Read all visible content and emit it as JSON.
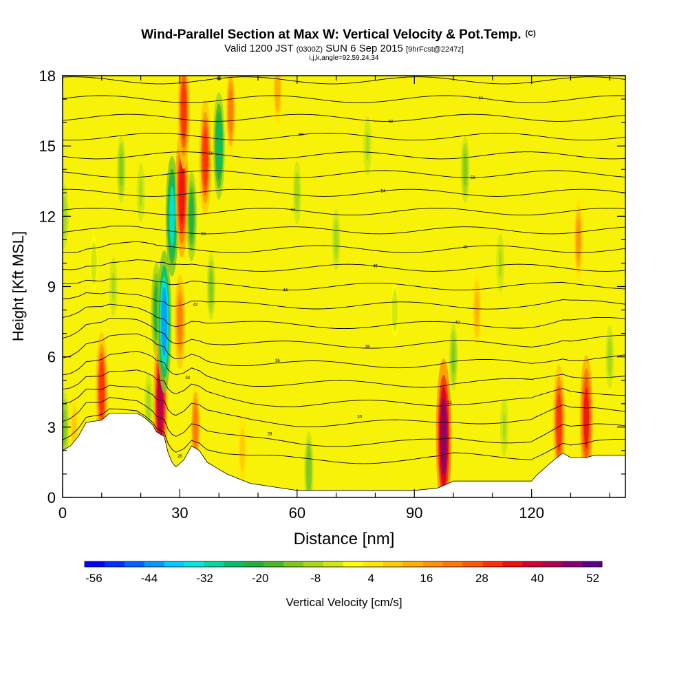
{
  "chart_data": {
    "type": "heatmap",
    "title": "Wind-Parallel Section at Max W: Vertical Velocity & Pot.Temp.",
    "title_tag": "(C)",
    "subtitle_parts": [
      "Valid 1200 JST",
      "(0300Z)",
      "SUN 6 Sep 2015",
      "[9hrFcst@2247z]"
    ],
    "subtitle2": "i,j,k,angle=92,59,24,34",
    "xlabel": "Distance [nm]",
    "ylabel": "Height [Kft MSL]",
    "xlim": [
      0,
      144
    ],
    "ylim": [
      0,
      18
    ],
    "x_ticks": [
      0,
      30,
      60,
      90,
      120
    ],
    "y_ticks": [
      0,
      3,
      6,
      9,
      12,
      15,
      18
    ],
    "colorbar": {
      "label": "Vertical Velocity [cm/s]",
      "min": -58,
      "max": 54,
      "tick_values": [
        -56,
        -44,
        -32,
        -20,
        -8,
        4,
        16,
        28,
        40,
        52
      ],
      "tick_labels": [
        "-56",
        "-44",
        "-32",
        "-20",
        "-8",
        "4",
        "16",
        "28",
        "40",
        "52"
      ],
      "colors": [
        "#0000ff",
        "#0030ff",
        "#0066ff",
        "#0099ff",
        "#00ccff",
        "#00e8e0",
        "#00d8a0",
        "#00c070",
        "#22b040",
        "#4cb828",
        "#80c820",
        "#a8d818",
        "#d0e810",
        "#ffff00",
        "#ffe800",
        "#ffcc00",
        "#ffb000",
        "#ff9400",
        "#ff7800",
        "#ff5800",
        "#ff3000",
        "#f01010",
        "#d00030",
        "#b00050",
        "#880070",
        "#5c0088"
      ]
    },
    "velocity_cells": [
      {
        "x": 0.5,
        "z": 3,
        "w": -14
      },
      {
        "x": 0.5,
        "z": 12,
        "w": -10
      },
      {
        "x": 3,
        "z": 3,
        "w": 10
      },
      {
        "x": 8,
        "z": 10,
        "w": -6
      },
      {
        "x": 10,
        "z": 4.6,
        "w": 34
      },
      {
        "x": 13,
        "z": 9,
        "w": -8
      },
      {
        "x": 15,
        "z": 14,
        "w": -12
      },
      {
        "x": 20,
        "z": 13,
        "w": -8
      },
      {
        "x": 22,
        "z": 4,
        "w": -10
      },
      {
        "x": 24,
        "z": 8,
        "w": -24
      },
      {
        "x": 25,
        "z": 4,
        "w": 46
      },
      {
        "x": 26,
        "z": 7.5,
        "w": -46
      },
      {
        "x": 28,
        "z": 12,
        "w": -36
      },
      {
        "x": 30,
        "z": 7.5,
        "w": 24
      },
      {
        "x": 30.5,
        "z": 13,
        "w": 40
      },
      {
        "x": 31,
        "z": 16.5,
        "w": 34
      },
      {
        "x": 33,
        "z": 12,
        "w": -22
      },
      {
        "x": 34,
        "z": 3,
        "w": 22
      },
      {
        "x": 36.5,
        "z": 14.5,
        "w": 34
      },
      {
        "x": 38,
        "z": 9,
        "w": -12
      },
      {
        "x": 40,
        "z": 15,
        "w": -30
      },
      {
        "x": 43,
        "z": 16.5,
        "w": 22
      },
      {
        "x": 46,
        "z": 2,
        "w": 12
      },
      {
        "x": 55,
        "z": 17.5,
        "w": 16
      },
      {
        "x": 60,
        "z": 13,
        "w": -10
      },
      {
        "x": 63,
        "z": 1.2,
        "w": -16
      },
      {
        "x": 70,
        "z": 11,
        "w": -9
      },
      {
        "x": 78,
        "z": 15,
        "w": -8
      },
      {
        "x": 85,
        "z": 8,
        "w": -6
      },
      {
        "x": 97.5,
        "z": 2.6,
        "w": 52
      },
      {
        "x": 100,
        "z": 6,
        "w": -12
      },
      {
        "x": 103,
        "z": 14,
        "w": -12
      },
      {
        "x": 106,
        "z": 8,
        "w": 14
      },
      {
        "x": 112,
        "z": 10,
        "w": -8
      },
      {
        "x": 113,
        "z": 3,
        "w": -8
      },
      {
        "x": 127,
        "z": 3.2,
        "w": 34
      },
      {
        "x": 134,
        "z": 3.4,
        "w": 38
      },
      {
        "x": 132,
        "z": 11,
        "w": 20
      },
      {
        "x": 140,
        "z": 6,
        "w": -10
      }
    ],
    "terrain_top": [
      [
        0,
        2
      ],
      [
        2,
        2.2
      ],
      [
        4,
        2.6
      ],
      [
        6,
        3.2
      ],
      [
        10,
        3.3
      ],
      [
        12,
        3.6
      ],
      [
        19,
        3.6
      ],
      [
        21,
        3.4
      ],
      [
        23,
        3.1
      ],
      [
        24,
        2.8
      ],
      [
        26,
        2.6
      ],
      [
        27,
        1.9
      ],
      [
        28,
        1.5
      ],
      [
        29,
        1.3
      ],
      [
        31,
        1.6
      ],
      [
        33,
        2.2
      ],
      [
        35,
        2.0
      ],
      [
        37,
        1.5
      ],
      [
        39,
        1.3
      ],
      [
        42,
        1.0
      ],
      [
        45,
        0.8
      ],
      [
        48,
        0.6
      ],
      [
        52,
        0.5
      ],
      [
        60,
        0.3
      ],
      [
        90,
        0.3
      ],
      [
        96,
        0.4
      ],
      [
        100,
        0.7
      ],
      [
        110,
        0.7
      ],
      [
        120,
        0.7
      ],
      [
        121,
        0.9
      ],
      [
        123,
        1.2
      ],
      [
        125,
        1.5
      ],
      [
        128,
        1.9
      ],
      [
        130,
        1.7
      ],
      [
        134,
        1.7
      ],
      [
        136,
        1.8
      ],
      [
        144,
        1.8
      ]
    ],
    "theta_contours": [
      {
        "label": "26",
        "base": 1.9
      },
      {
        "label": "28",
        "base": 2.6
      },
      {
        "label": "30",
        "base": 3.4
      },
      {
        "label": "32",
        "base": 4.2
      },
      {
        "label": "34",
        "base": 5.0
      },
      {
        "label": "36",
        "base": 5.8
      },
      {
        "label": "38",
        "base": 6.6
      },
      {
        "label": "40",
        "base": 7.4
      },
      {
        "label": "42",
        "base": 8.2
      },
      {
        "label": "44",
        "base": 9.0
      },
      {
        "label": "46",
        "base": 9.8
      },
      {
        "label": "48",
        "base": 10.6
      },
      {
        "label": "50",
        "base": 11.4
      },
      {
        "label": "52",
        "base": 12.2
      },
      {
        "label": "54",
        "base": 13.0
      },
      {
        "label": "56",
        "base": 13.8
      },
      {
        "label": "58",
        "base": 14.6
      },
      {
        "label": "60",
        "base": 15.4
      },
      {
        "label": "62",
        "base": 16.2
      },
      {
        "label": "64",
        "base": 17.0
      },
      {
        "label": "66",
        "base": 17.8
      }
    ]
  }
}
